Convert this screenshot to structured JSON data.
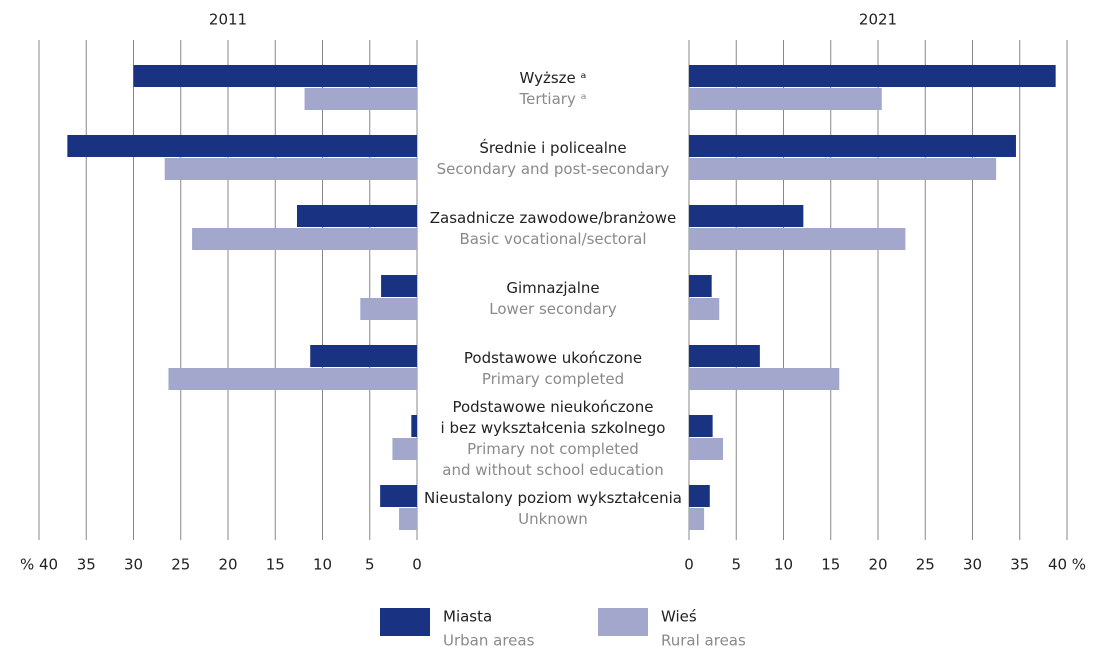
{
  "chart_data": {
    "type": "bar",
    "orientation": "horizontal",
    "grid": true,
    "categories": [
      [
        "Wyższe ᵃ"
      ],
      [
        "Średnie i policealne"
      ],
      [
        "Zasadnicze zawodowe/branżowe"
      ],
      [
        "Gimnazjalne"
      ],
      [
        "Podstawowe ukończone"
      ],
      [
        "Podstawowe nieukończone",
        "i bez wykształcenia szkolnego"
      ],
      [
        "Nieustalony poziom wykształcenia"
      ]
    ],
    "categories_en": [
      [
        "Tertiary ᵃ"
      ],
      [
        "Secondary and post-secondary"
      ],
      [
        "Basic vocational/sectoral"
      ],
      [
        "Lower secondary"
      ],
      [
        "Primary completed"
      ],
      [
        "Primary not completed",
        "and without school education"
      ],
      [
        "Unknown"
      ]
    ],
    "legend": [
      {
        "name": "Miasta",
        "name_en": "Urban areas",
        "color": "#1a3282"
      },
      {
        "name": "Wieś",
        "name_en": "Rural areas",
        "color": "#a4a7cc"
      }
    ],
    "panels": [
      {
        "title": "2011",
        "xlim": [
          40,
          0
        ],
        "xticks": [
          {
            "value": 40,
            "label": "% 40"
          },
          35,
          30,
          25,
          20,
          15,
          10,
          5,
          0
        ],
        "series": [
          {
            "values": [
              30.0,
              37.0,
              12.7,
              3.8,
              11.3,
              0.6,
              3.9
            ]
          },
          {
            "values": [
              11.9,
              26.7,
              23.8,
              6.0,
              26.3,
              2.6,
              1.9
            ]
          }
        ]
      },
      {
        "title": "2021",
        "xlim": [
          0,
          40
        ],
        "xticks": [
          0,
          5,
          10,
          15,
          20,
          25,
          30,
          35,
          {
            "value": 40,
            "label": "40 %"
          }
        ],
        "series": [
          {
            "values": [
              38.8,
              34.6,
              12.1,
              2.4,
              7.5,
              2.5,
              2.2
            ]
          },
          {
            "values": [
              20.4,
              32.5,
              22.9,
              3.2,
              15.9,
              3.6,
              1.6
            ]
          }
        ]
      }
    ]
  }
}
